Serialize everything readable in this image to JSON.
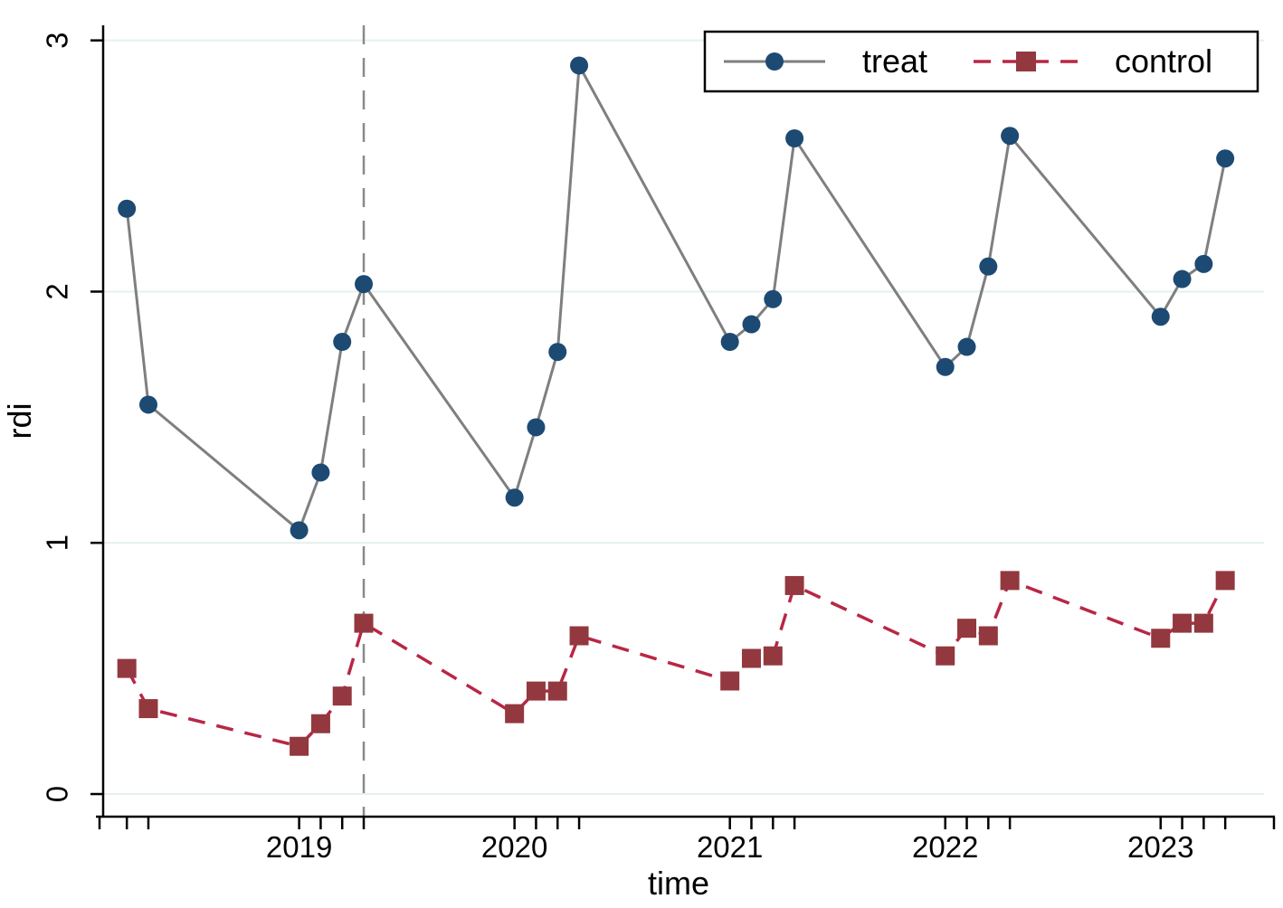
{
  "chart_data": {
    "type": "line",
    "title": "",
    "xlabel": "time",
    "ylabel": "rdi",
    "xlim": [
      2018.09,
      2023.48
    ],
    "ylim": [
      -0.09,
      3.06
    ],
    "grid": "horizontal",
    "gridline_color": "#e6eff1",
    "background": "#ffffff",
    "axis_color": "#000000",
    "x_major_ticks": [
      2019,
      2020,
      2021,
      2022,
      2023
    ],
    "x_major_tick_labels": [
      "2019",
      "2020",
      "2021",
      "2022",
      "2023"
    ],
    "y_ticks": [
      0,
      1,
      2,
      3
    ],
    "y_tick_labels": [
      "0",
      "1",
      "2",
      "3"
    ],
    "x": [
      2018.2,
      2018.3,
      2019.0,
      2019.1,
      2019.2,
      2019.3,
      2020.0,
      2020.1,
      2020.2,
      2020.3,
      2021.0,
      2021.1,
      2021.2,
      2021.3,
      2022.0,
      2022.1,
      2022.2,
      2022.3,
      2023.0,
      2023.1,
      2023.2,
      2023.3
    ],
    "series": [
      {
        "name": "treat",
        "marker": "circle",
        "marker_color": "#1d4a73",
        "line_color": "#7f7f7f",
        "line_style": "solid",
        "values": [
          2.33,
          1.55,
          1.05,
          1.28,
          1.8,
          2.03,
          1.18,
          1.46,
          1.76,
          2.9,
          1.8,
          1.87,
          1.97,
          2.61,
          1.7,
          1.78,
          2.1,
          2.62,
          1.9,
          2.05,
          2.11,
          2.53
        ]
      },
      {
        "name": "control",
        "marker": "square",
        "marker_color": "#93383f",
        "line_color": "#b82746",
        "line_style": "dashed",
        "values": [
          0.5,
          0.34,
          0.19,
          0.28,
          0.39,
          0.68,
          0.32,
          0.41,
          0.41,
          0.63,
          0.45,
          0.54,
          0.55,
          0.83,
          0.55,
          0.66,
          0.63,
          0.85,
          0.62,
          0.68,
          0.68,
          0.85
        ]
      }
    ],
    "vline": {
      "x": 2019.3,
      "style": "dashed",
      "color": "#8a8a8a"
    },
    "legend": {
      "position": "top-right",
      "entries": [
        "treat",
        "control"
      ]
    }
  }
}
